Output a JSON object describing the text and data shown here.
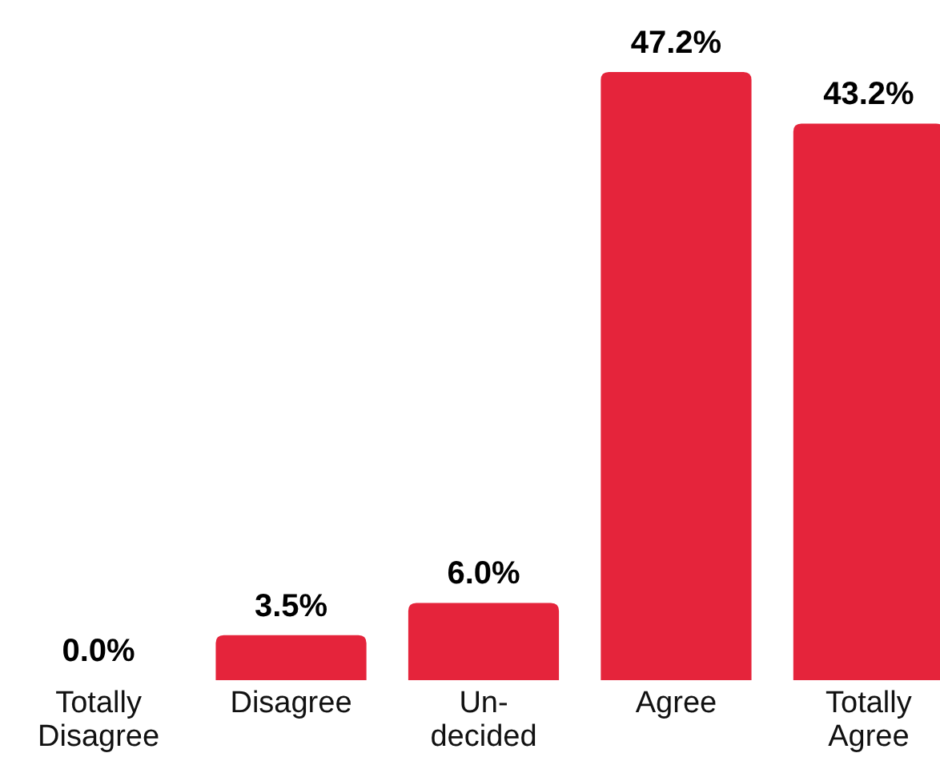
{
  "chart_data": {
    "type": "bar",
    "categories": [
      "Totally\nDisagree",
      "Disagree",
      "Un-\ndecided",
      "Agree",
      "Totally\nAgree"
    ],
    "values": [
      0.0,
      3.5,
      6.0,
      47.2,
      43.2
    ],
    "value_labels": [
      "0.0%",
      "3.5%",
      "6.0%",
      "47.2%",
      "43.2%"
    ],
    "color": "#e5243b"
  }
}
